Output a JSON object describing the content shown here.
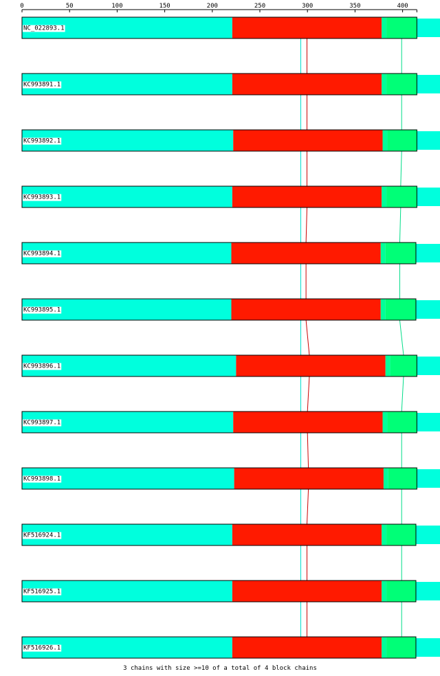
{
  "chart_data": {
    "type": "block-alignment",
    "axis": {
      "min": 0,
      "max": 415,
      "ticks": [
        0,
        50,
        100,
        150,
        200,
        250,
        300,
        350,
        400
      ]
    },
    "colors": {
      "cyan": "#00ffdd",
      "red": "#ff1a00",
      "teal": "#00ff99",
      "green": "#00ff77",
      "chain_cyan": "#00ddcc",
      "chain_red": "#cc0000",
      "chain_green": "#00dd88"
    },
    "sequences": [
      {
        "name": "NC_022893.1",
        "blocks": [
          [
            0,
            221,
            "cyan"
          ],
          [
            221,
            378,
            "red"
          ],
          [
            378,
            383,
            "teal"
          ],
          [
            383,
            415,
            "green"
          ]
        ],
        "chains": [
          293,
          299.5,
          399
        ]
      },
      {
        "name": "KC993891.1",
        "blocks": [
          [
            0,
            221,
            "cyan"
          ],
          [
            221,
            378,
            "red"
          ],
          [
            378,
            383,
            "teal"
          ],
          [
            383,
            415,
            "green"
          ]
        ],
        "chains": [
          293,
          299.5,
          399
        ]
      },
      {
        "name": "KC993892.1",
        "blocks": [
          [
            0,
            222,
            "cyan"
          ],
          [
            222,
            379,
            "red"
          ],
          [
            379,
            384,
            "teal"
          ],
          [
            384,
            415,
            "green"
          ]
        ],
        "chains": [
          293,
          299.5,
          399
        ]
      },
      {
        "name": "KC993893.1",
        "blocks": [
          [
            0,
            221,
            "cyan"
          ],
          [
            221,
            378,
            "red"
          ],
          [
            378,
            383,
            "teal"
          ],
          [
            383,
            415,
            "green"
          ]
        ],
        "chains": [
          293,
          299.5,
          398
        ]
      },
      {
        "name": "KC993894.1",
        "blocks": [
          [
            0,
            220,
            "cyan"
          ],
          [
            220,
            377,
            "red"
          ],
          [
            377,
            382,
            "teal"
          ],
          [
            382,
            414,
            "green"
          ]
        ],
        "chains": [
          293,
          298.5,
          397
        ]
      },
      {
        "name": "KC993895.1",
        "blocks": [
          [
            0,
            220,
            "cyan"
          ],
          [
            220,
            377,
            "red"
          ],
          [
            377,
            382,
            "teal"
          ],
          [
            382,
            414,
            "green"
          ]
        ],
        "chains": [
          293,
          298.5,
          397
        ]
      },
      {
        "name": "KC993896.1",
        "blocks": [
          [
            0,
            225,
            "cyan"
          ],
          [
            225,
            382,
            "red"
          ],
          [
            382,
            387,
            "teal"
          ],
          [
            387,
            415,
            "green"
          ]
        ],
        "chains": [
          293,
          302,
          401
        ]
      },
      {
        "name": "KC993897.1",
        "blocks": [
          [
            0,
            222,
            "cyan"
          ],
          [
            222,
            379,
            "red"
          ],
          [
            379,
            384,
            "teal"
          ],
          [
            384,
            415,
            "green"
          ]
        ],
        "chains": [
          293,
          300,
          399
        ]
      },
      {
        "name": "KC993898.1",
        "blocks": [
          [
            0,
            223,
            "cyan"
          ],
          [
            223,
            380,
            "red"
          ],
          [
            380,
            385,
            "teal"
          ],
          [
            385,
            415,
            "green"
          ]
        ],
        "chains": [
          293,
          301,
          399
        ]
      },
      {
        "name": "KF516924.1",
        "blocks": [
          [
            0,
            221,
            "cyan"
          ],
          [
            221,
            378,
            "red"
          ],
          [
            378,
            383,
            "teal"
          ],
          [
            383,
            414,
            "green"
          ]
        ],
        "chains": [
          293,
          299.5,
          399
        ]
      },
      {
        "name": "KF516925.1",
        "blocks": [
          [
            0,
            221,
            "cyan"
          ],
          [
            221,
            378,
            "red"
          ],
          [
            378,
            383,
            "teal"
          ],
          [
            383,
            414,
            "green"
          ]
        ],
        "chains": [
          293,
          299.5,
          399
        ]
      },
      {
        "name": "KF516926.1",
        "blocks": [
          [
            0,
            221,
            "cyan"
          ],
          [
            221,
            378,
            "red"
          ],
          [
            378,
            383,
            "teal"
          ],
          [
            383,
            414,
            "green"
          ]
        ],
        "chains": [
          293,
          299.5,
          399
        ]
      }
    ],
    "footer": "3 chains with size >=10 of a total of 4 block chains"
  }
}
